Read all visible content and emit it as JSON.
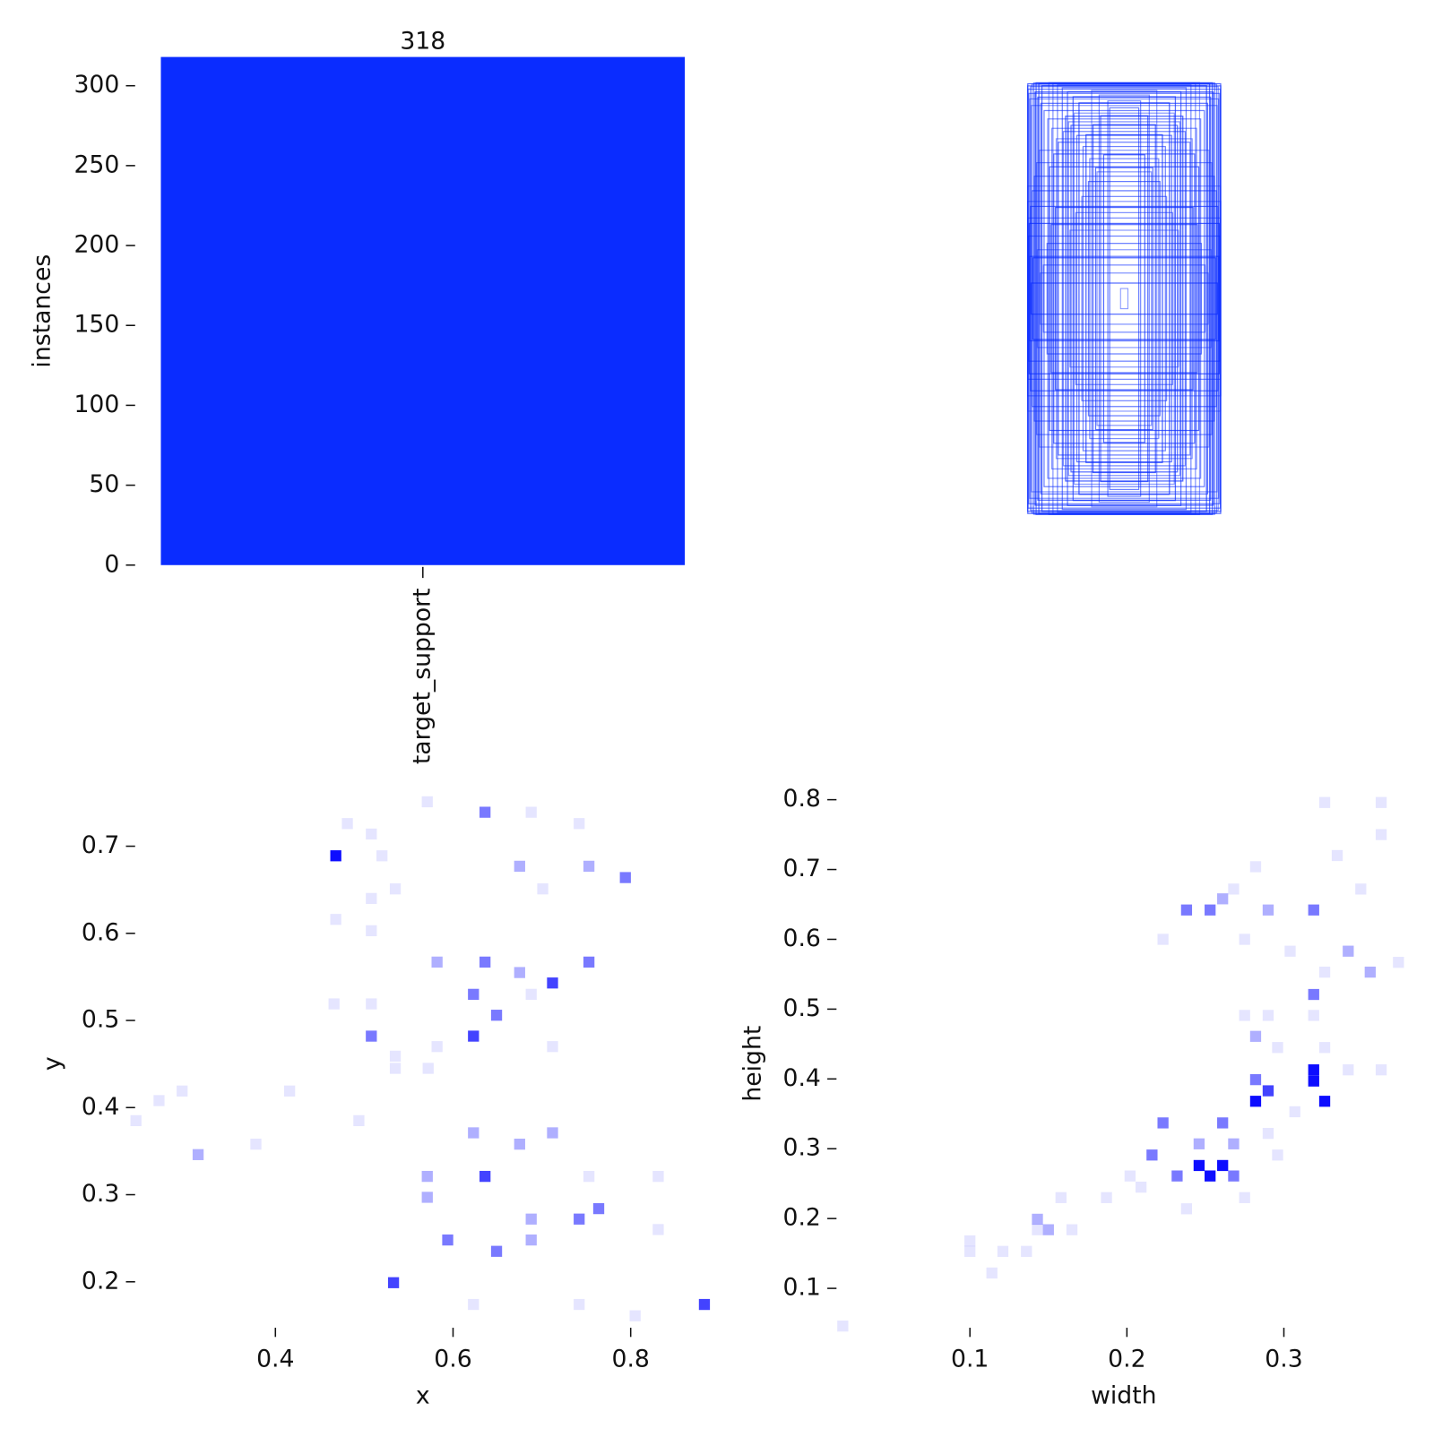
{
  "chart_data": [
    {
      "type": "bar",
      "categories": [
        "target_support"
      ],
      "values": [
        318
      ],
      "value_labels": [
        "318"
      ],
      "ylabel": "instances",
      "ylim": [
        0,
        318
      ],
      "yticks": [
        0,
        50,
        100,
        150,
        200,
        250,
        300
      ],
      "color": "#0a2cff"
    },
    {
      "type": "histogram2d",
      "xlabel": "x",
      "ylabel": "y",
      "color": "#0000ff",
      "xlim": [
        0.24,
        0.892
      ],
      "ylim": [
        0.142,
        0.759
      ],
      "xticks": [
        0.4,
        0.6,
        0.8
      ],
      "yticks": [
        0.2,
        0.3,
        0.4,
        0.5,
        0.6,
        0.7
      ],
      "x": [
        0.468,
        0.636,
        0.688,
        0.571,
        0.481,
        0.508,
        0.52,
        0.753,
        0.675,
        0.794,
        0.742,
        0.508,
        0.701,
        0.535,
        0.468,
        0.508,
        0.636,
        0.753,
        0.582,
        0.712,
        0.675,
        0.623,
        0.649,
        0.623,
        0.508,
        0.582,
        0.535,
        0.572,
        0.466,
        0.508,
        0.688,
        0.712,
        0.623,
        0.712,
        0.675,
        0.636,
        0.571,
        0.571,
        0.764,
        0.742,
        0.688,
        0.594,
        0.649,
        0.688,
        0.533,
        0.883,
        0.313,
        0.295,
        0.269,
        0.243,
        0.378,
        0.416,
        0.494,
        0.535,
        0.753,
        0.831,
        0.805,
        0.742,
        0.831,
        0.623
      ],
      "y": [
        0.689,
        0.739,
        0.739,
        0.751,
        0.726,
        0.714,
        0.689,
        0.677,
        0.677,
        0.664,
        0.726,
        0.64,
        0.651,
        0.651,
        0.616,
        0.603,
        0.567,
        0.567,
        0.567,
        0.543,
        0.555,
        0.53,
        0.506,
        0.482,
        0.482,
        0.47,
        0.445,
        0.445,
        0.519,
        0.519,
        0.53,
        0.47,
        0.371,
        0.371,
        0.358,
        0.321,
        0.321,
        0.297,
        0.284,
        0.272,
        0.272,
        0.248,
        0.235,
        0.248,
        0.199,
        0.174,
        0.346,
        0.419,
        0.408,
        0.385,
        0.358,
        0.419,
        0.385,
        0.459,
        0.321,
        0.321,
        0.161,
        0.174,
        0.26,
        0.174
      ],
      "values": [
        5,
        3,
        1,
        1,
        1,
        1,
        1,
        2,
        2,
        3,
        1,
        1,
        1,
        1,
        1,
        1,
        3,
        3,
        2,
        4,
        2,
        3,
        3,
        4,
        3,
        1,
        1,
        1,
        1,
        1,
        1,
        1,
        2,
        2,
        2,
        4,
        2,
        2,
        3,
        3,
        2,
        3,
        3,
        2,
        4,
        4,
        2,
        1,
        1,
        1,
        1,
        1,
        1,
        1,
        1,
        1,
        1,
        1,
        1,
        1
      ]
    },
    {
      "type": "histogram2d",
      "xlabel": "width",
      "ylabel": "height",
      "color": "#0000ff",
      "xlim": [
        0.015,
        0.381
      ],
      "ylim": [
        0.037,
        0.807
      ],
      "xticks": [
        0.1,
        0.2,
        0.3
      ],
      "yticks": [
        0.1,
        0.2,
        0.3,
        0.4,
        0.5,
        0.6,
        0.7,
        0.8
      ],
      "x": [
        0.319,
        0.319,
        0.326,
        0.246,
        0.261,
        0.253,
        0.282,
        0.29,
        0.282,
        0.319,
        0.282,
        0.223,
        0.216,
        0.261,
        0.268,
        0.232,
        0.238,
        0.253,
        0.261,
        0.319,
        0.29,
        0.268,
        0.341,
        0.355,
        0.373,
        0.362,
        0.326,
        0.362,
        0.282,
        0.334,
        0.349,
        0.143,
        0.15,
        0.143,
        0.165,
        0.158,
        0.1,
        0.1,
        0.121,
        0.136,
        0.114,
        0.019,
        0.187,
        0.202,
        0.209,
        0.275,
        0.238,
        0.296,
        0.29,
        0.307,
        0.341,
        0.362,
        0.326,
        0.296,
        0.275,
        0.29,
        0.319,
        0.223,
        0.275,
        0.304,
        0.326,
        0.268,
        0.246
      ],
      "y": [
        0.413,
        0.397,
        0.368,
        0.276,
        0.276,
        0.261,
        0.368,
        0.383,
        0.399,
        0.521,
        0.461,
        0.337,
        0.291,
        0.337,
        0.261,
        0.261,
        0.642,
        0.642,
        0.658,
        0.642,
        0.642,
        0.672,
        0.583,
        0.553,
        0.567,
        0.75,
        0.796,
        0.796,
        0.704,
        0.72,
        0.672,
        0.199,
        0.184,
        0.184,
        0.184,
        0.23,
        0.168,
        0.153,
        0.153,
        0.153,
        0.122,
        0.046,
        0.23,
        0.261,
        0.245,
        0.23,
        0.214,
        0.291,
        0.322,
        0.353,
        0.413,
        0.413,
        0.445,
        0.445,
        0.491,
        0.491,
        0.491,
        0.6,
        0.6,
        0.583,
        0.553,
        0.307,
        0.307
      ],
      "values": [
        5,
        5,
        5,
        5,
        5,
        5,
        5,
        4,
        3,
        3,
        2,
        3,
        3,
        3,
        3,
        3,
        3,
        3,
        2,
        3,
        2,
        1,
        2,
        2,
        1,
        1,
        1,
        1,
        1,
        1,
        1,
        2,
        2,
        1,
        1,
        1,
        1,
        1,
        1,
        1,
        1,
        1,
        1,
        1,
        1,
        1,
        1,
        1,
        1,
        1,
        1,
        1,
        1,
        1,
        1,
        1,
        1,
        1,
        1,
        1,
        1,
        2,
        2
      ]
    }
  ]
}
